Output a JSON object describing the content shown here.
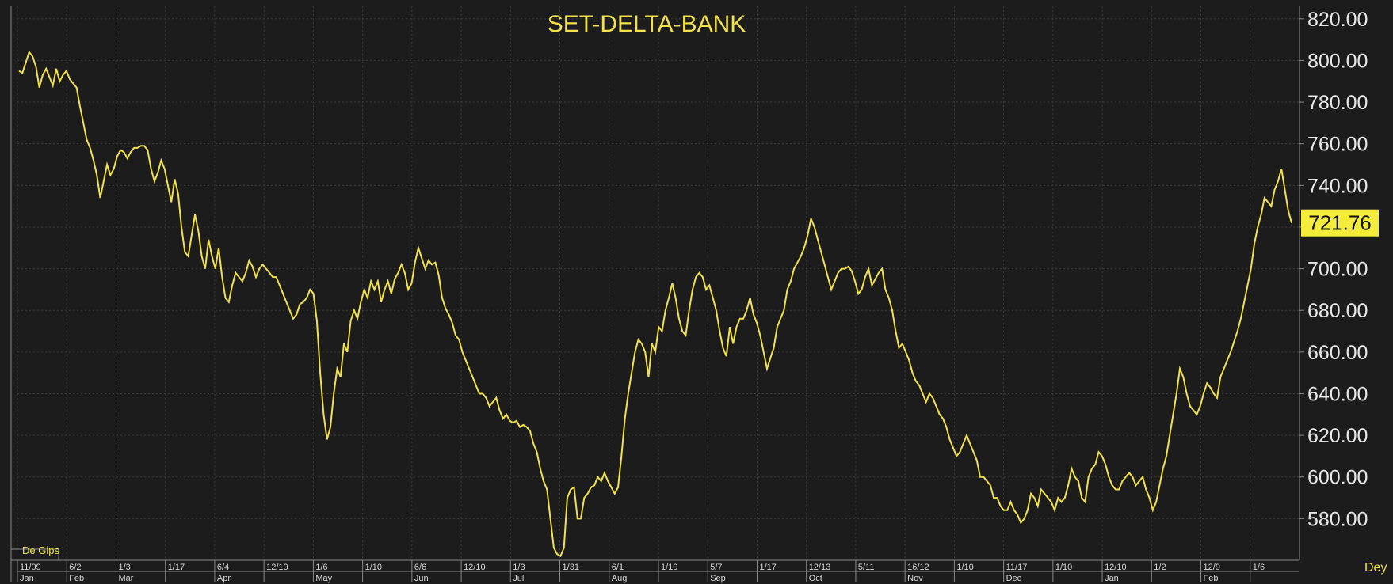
{
  "chart_data": {
    "type": "line",
    "title": "SET-DELTA-BANK",
    "ylim": [
      560,
      826
    ],
    "yticks": [
      "820.00",
      "800.00",
      "780.00",
      "760.00",
      "740.00",
      "720.00",
      "700.00",
      "680.00",
      "660.00",
      "640.00",
      "620.00",
      "600.00",
      "580.00"
    ],
    "last_value": "721.76",
    "line_color": "#f2e14a",
    "background_color": "#1c1c1c",
    "grid": true,
    "x_tick_top": [
      "11/09",
      "6/2",
      "1/3",
      "1/17",
      "6/4",
      "12/10",
      "1/6",
      "1/10",
      "6/6",
      "12/10",
      "1/3",
      "1/31",
      "6/1",
      "1/10",
      "5/7",
      "1/17",
      "12/13",
      "5/11",
      "16/12",
      "1/10",
      "11/17",
      "1/10",
      "12/10",
      "1/2",
      "12/9",
      "1/6"
    ],
    "x_tick_bottom": [
      "Jan",
      "Feb",
      "Mar",
      "",
      "Apr",
      "",
      "May",
      "",
      "Jun",
      "",
      "Jul",
      "",
      "Aug",
      "",
      "Sep",
      "",
      "Oct",
      "",
      "Nov",
      "",
      "Dec",
      "",
      "Jan",
      "",
      "Feb",
      ""
    ],
    "corner_label": "De Gips",
    "right_label": "Dey",
    "series": [
      {
        "values": [
          795,
          794,
          799,
          804,
          802,
          797,
          787,
          793,
          796,
          792,
          788,
          796,
          790,
          793,
          795,
          791,
          789,
          787,
          778,
          770,
          762,
          758,
          752,
          745,
          734,
          742,
          750,
          745,
          748,
          754,
          757,
          756,
          753,
          756,
          758,
          758,
          759,
          759,
          757,
          748,
          742,
          746,
          752,
          748,
          740,
          732,
          743,
          736,
          720,
          708,
          706,
          716,
          726,
          718,
          706,
          700,
          714,
          706,
          700,
          710,
          696,
          686,
          684,
          692,
          698,
          696,
          694,
          698,
          704,
          701,
          696,
          700,
          702,
          700,
          698,
          696,
          696,
          692,
          688,
          684,
          680,
          676,
          678,
          683,
          684,
          686,
          690,
          688,
          675,
          650,
          630,
          618,
          624,
          640,
          652,
          648,
          664,
          660,
          675,
          680,
          676,
          684,
          690,
          686,
          694,
          690,
          694,
          684,
          690,
          694,
          688,
          695,
          698,
          702,
          698,
          690,
          693,
          703,
          710,
          705,
          700,
          704,
          702,
          703,
          697,
          686,
          681,
          678,
          674,
          668,
          666,
          660,
          656,
          652,
          648,
          644,
          640,
          640,
          638,
          634,
          636,
          638,
          632,
          628,
          630,
          627,
          626,
          627,
          624,
          625,
          624,
          622,
          616,
          612,
          604,
          598,
          594,
          580,
          566,
          563,
          562,
          566,
          590,
          594,
          595,
          580,
          580,
          590,
          592,
          595,
          596,
          600,
          598,
          602,
          598,
          595,
          592,
          595,
          610,
          628,
          640,
          650,
          660,
          666,
          664,
          660,
          648,
          664,
          660,
          672,
          670,
          680,
          686,
          693,
          686,
          676,
          670,
          668,
          680,
          690,
          696,
          698,
          696,
          690,
          692,
          686,
          680,
          670,
          662,
          658,
          672,
          664,
          672,
          676,
          676,
          680,
          686,
          678,
          674,
          668,
          660,
          652,
          657,
          662,
          672,
          676,
          680,
          690,
          694,
          700,
          703,
          706,
          710,
          716,
          724,
          720,
          714,
          708,
          702,
          696,
          690,
          694,
          698,
          700,
          700,
          701,
          699,
          694,
          688,
          690,
          696,
          700,
          692,
          695,
          698,
          700,
          690,
          686,
          680,
          670,
          662,
          664,
          660,
          656,
          650,
          646,
          644,
          640,
          636,
          640,
          638,
          634,
          630,
          628,
          624,
          618,
          614,
          610,
          612,
          616,
          620,
          616,
          612,
          608,
          600,
          600,
          598,
          596,
          590,
          590,
          586,
          584,
          584,
          588,
          584,
          582,
          578,
          580,
          584,
          592,
          590,
          586,
          594,
          592,
          590,
          588,
          584,
          590,
          588,
          590,
          596,
          604,
          600,
          598,
          590,
          588,
          600,
          604,
          606,
          612,
          610,
          606,
          600,
          596,
          594,
          594,
          598,
          600,
          602,
          600,
          596,
          598,
          600,
          594,
          590,
          584,
          588,
          596,
          604,
          610,
          620,
          630,
          640,
          652,
          648,
          640,
          634,
          632,
          630,
          634,
          640,
          645,
          643,
          640,
          638,
          648,
          652,
          656,
          660,
          665,
          670,
          676,
          684,
          692,
          700,
          712,
          720,
          726,
          734,
          732,
          730,
          738,
          742,
          748,
          738,
          728,
          722
        ]
      }
    ]
  }
}
